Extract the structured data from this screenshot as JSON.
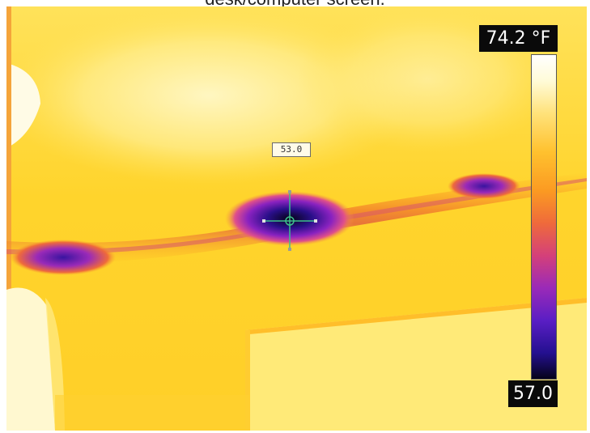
{
  "caption": "desk/computer screen.",
  "thermal": {
    "spot_value": "53.0",
    "scale_max": "74.2 °F",
    "scale_min": "57.0"
  },
  "colors": {
    "palette_hot": "#ffffff",
    "palette_warm": "#ffd23a",
    "palette_mid": "#f07a30",
    "palette_cool": "#8a22c0",
    "palette_cold": "#05021a",
    "crosshair": "#3cbf8a"
  },
  "icons": {
    "crosshair": "measurement-crosshair-icon"
  }
}
